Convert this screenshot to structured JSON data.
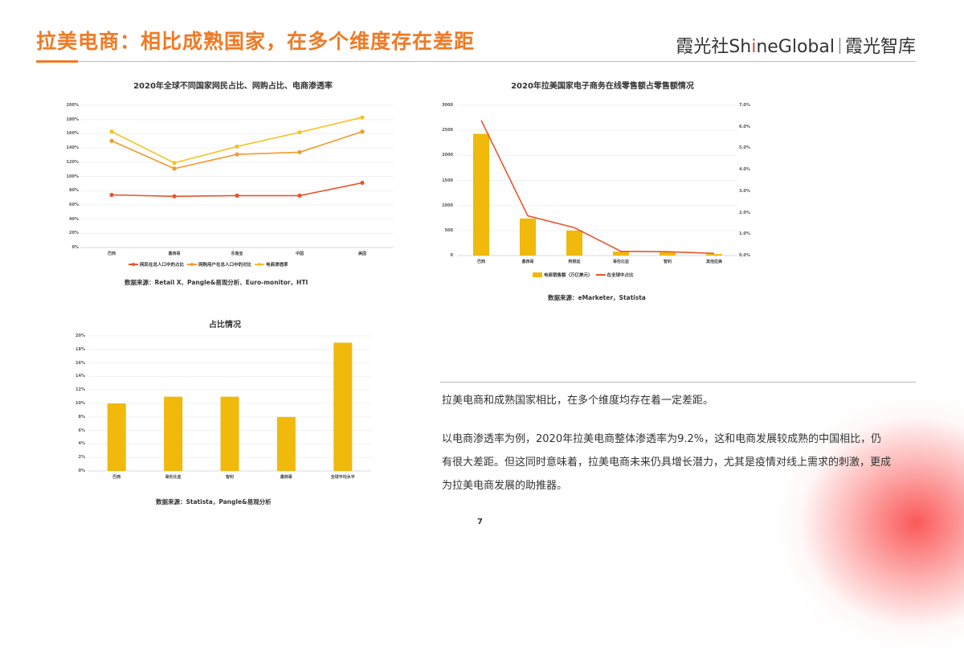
{
  "header": {
    "title": "拉美电商：相比成熟国家，在多个维度存在差距",
    "brand_left": "霞光社",
    "brand_en_a": "Sh",
    "brand_en_i": "i",
    "brand_en_b": "neGlobal",
    "brand_right": "霞光智库",
    "accent_color": "#f07a24"
  },
  "chart_data": [
    {
      "type": "line",
      "title": "2020年全球不同国家网民占比、网购占比、电商渗透率",
      "categories": [
        "巴西",
        "墨西哥",
        "东南亚",
        "中国",
        "美国"
      ],
      "y_ticks": [
        "0%",
        "20%",
        "40%",
        "60%",
        "80%",
        "100%",
        "120%",
        "140%",
        "160%",
        "180%",
        "200%"
      ],
      "ylim": [
        0,
        200
      ],
      "series": [
        {
          "name": "网民在总人口中的占比",
          "color": "#e8552b",
          "values": [
            74,
            72,
            73,
            73,
            91
          ]
        },
        {
          "name": "网购用户在总人口中的对比",
          "color": "#f29a2e",
          "values": [
            150,
            111,
            131,
            134,
            163
          ]
        },
        {
          "name": "电商渗透率",
          "color": "#f5c224",
          "values": [
            163,
            119,
            142,
            162,
            183
          ]
        }
      ],
      "source": "数据来源：Retail X、Pangle&易观分析、Euro-monitor，HTI",
      "grid": true,
      "legend_position": "bottom"
    },
    {
      "type": "bar+line",
      "title": "2020年拉美国家电子商务在线零售额占零售额情况",
      "categories": [
        "巴西",
        "墨西哥",
        "阿根廷",
        "哥伦比亚",
        "智利",
        "其他拉美"
      ],
      "y_ticks_left": [
        "0",
        "500",
        "1000",
        "1500",
        "2000",
        "2500",
        "3000"
      ],
      "ylim_left": [
        0,
        3000
      ],
      "y_ticks_right": [
        "0.0%",
        "1.0%",
        "2.0%",
        "3.0%",
        "4.0%",
        "5.0%",
        "6.0%",
        "7.0%"
      ],
      "ylim_right": [
        0,
        7
      ],
      "series": [
        {
          "name": "电商销售额（万亿美元）",
          "type": "bar",
          "color": "#f0b90b",
          "values": [
            2430,
            740,
            500,
            80,
            80,
            30
          ]
        },
        {
          "name": "在全球中占比",
          "type": "line",
          "color": "#e8552b",
          "values": [
            6.3,
            1.85,
            1.3,
            0.2,
            0.18,
            0.1
          ]
        }
      ],
      "source": "数据来源：eMarketer，Statista",
      "grid": true,
      "legend_position": "bottom"
    },
    {
      "type": "bar",
      "title": "占比情况",
      "categories": [
        "巴西",
        "哥伦比亚",
        "智利",
        "墨西哥",
        "全球平均水平"
      ],
      "y_ticks": [
        "0%",
        "2%",
        "4%",
        "6%",
        "8%",
        "10%",
        "12%",
        "14%",
        "16%",
        "18%",
        "20%"
      ],
      "ylim": [
        0,
        20
      ],
      "series": [
        {
          "name": "占比",
          "color": "#f0b90b",
          "values": [
            10,
            11,
            11,
            8,
            19
          ]
        }
      ],
      "source": "数据来源：Statista，Pangle&易观分析",
      "grid": true
    }
  ],
  "text": {
    "p1": "拉美电商和成熟国家相比，在多个维度均存在着一定差距。",
    "p2": "以电商渗透率为例，2020年拉美电商整体渗透率为9.2%，这和电商发展较成熟的中国相比，仍有很大差距。但这同时意味着，拉美电商未来仍具增长潜力，尤其是疫情对线上需求的刺激，更成为拉美电商发展的助推器。"
  },
  "page_number": "7"
}
